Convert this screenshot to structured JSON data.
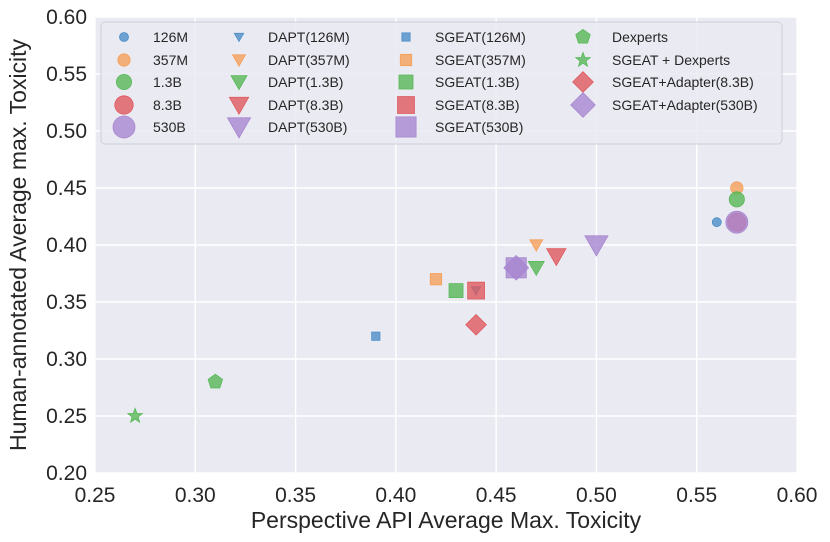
{
  "chart_data": {
    "type": "scatter",
    "title": "",
    "xlabel": "Perspective API Average Max. Toxicity",
    "ylabel": "Human-annotated  Average max. Toxicity",
    "xlim": [
      0.25,
      0.6
    ],
    "ylim": [
      0.2,
      0.6
    ],
    "xticks": [
      "0.25",
      "0.30",
      "0.35",
      "0.40",
      "0.45",
      "0.50",
      "0.55",
      "0.60"
    ],
    "yticks": [
      "0.20",
      "0.25",
      "0.30",
      "0.35",
      "0.40",
      "0.45",
      "0.50",
      "0.55",
      "0.60"
    ],
    "grid": true,
    "background": "#eaeaf2",
    "legend_position": "top",
    "series": [
      {
        "name": "126M",
        "marker": "circle",
        "size": "xs",
        "color": "#4c8fc8",
        "x": 0.56,
        "y": 0.42
      },
      {
        "name": "357M",
        "marker": "circle",
        "size": "s",
        "color": "#f5a05a",
        "x": 0.57,
        "y": 0.45
      },
      {
        "name": "1.3B",
        "marker": "circle",
        "size": "m",
        "color": "#58b858",
        "x": 0.57,
        "y": 0.44
      },
      {
        "name": "8.3B",
        "marker": "circle",
        "size": "l",
        "color": "#de5a5e",
        "x": 0.57,
        "y": 0.42
      },
      {
        "name": "530B",
        "marker": "circle",
        "size": "xl",
        "color": "#a887d0",
        "x": 0.57,
        "y": 0.42
      },
      {
        "name": "DAPT(126M)",
        "marker": "triangle-down",
        "size": "xs",
        "color": "#4c8fc8",
        "x": 0.44,
        "y": 0.36
      },
      {
        "name": "DAPT(357M)",
        "marker": "triangle-down",
        "size": "s",
        "color": "#f5a05a",
        "x": 0.47,
        "y": 0.4
      },
      {
        "name": "DAPT(1.3B)",
        "marker": "triangle-down",
        "size": "m",
        "color": "#58b858",
        "x": 0.47,
        "y": 0.38
      },
      {
        "name": "DAPT(8.3B)",
        "marker": "triangle-down",
        "size": "l",
        "color": "#de5a5e",
        "x": 0.48,
        "y": 0.39
      },
      {
        "name": "DAPT(530B)",
        "marker": "triangle-down",
        "size": "xl",
        "color": "#a887d0",
        "x": 0.5,
        "y": 0.4
      },
      {
        "name": "SGEAT(126M)",
        "marker": "square",
        "size": "xs",
        "color": "#4c8fc8",
        "x": 0.39,
        "y": 0.32
      },
      {
        "name": "SGEAT(357M)",
        "marker": "square",
        "size": "s",
        "color": "#f5a05a",
        "x": 0.42,
        "y": 0.37
      },
      {
        "name": "SGEAT(1.3B)",
        "marker": "square",
        "size": "m",
        "color": "#58b858",
        "x": 0.43,
        "y": 0.36
      },
      {
        "name": "SGEAT(8.3B)",
        "marker": "square",
        "size": "l",
        "color": "#de5a5e",
        "x": 0.44,
        "y": 0.36
      },
      {
        "name": "SGEAT(530B)",
        "marker": "square",
        "size": "xl",
        "color": "#a887d0",
        "x": 0.46,
        "y": 0.38
      },
      {
        "name": "Dexperts",
        "marker": "pentagon",
        "size": "m",
        "color": "#58b858",
        "x": 0.31,
        "y": 0.28
      },
      {
        "name": "SGEAT + Dexperts",
        "marker": "star",
        "size": "m",
        "color": "#58b858",
        "x": 0.27,
        "y": 0.25
      },
      {
        "name": "SGEAT+Adapter(8.3B)",
        "marker": "diamond",
        "size": "l",
        "color": "#de5a5e",
        "x": 0.44,
        "y": 0.33
      },
      {
        "name": "SGEAT+Adapter(530B)",
        "marker": "diamond",
        "size": "xl",
        "color": "#a887d0",
        "x": 0.46,
        "y": 0.38
      }
    ]
  }
}
